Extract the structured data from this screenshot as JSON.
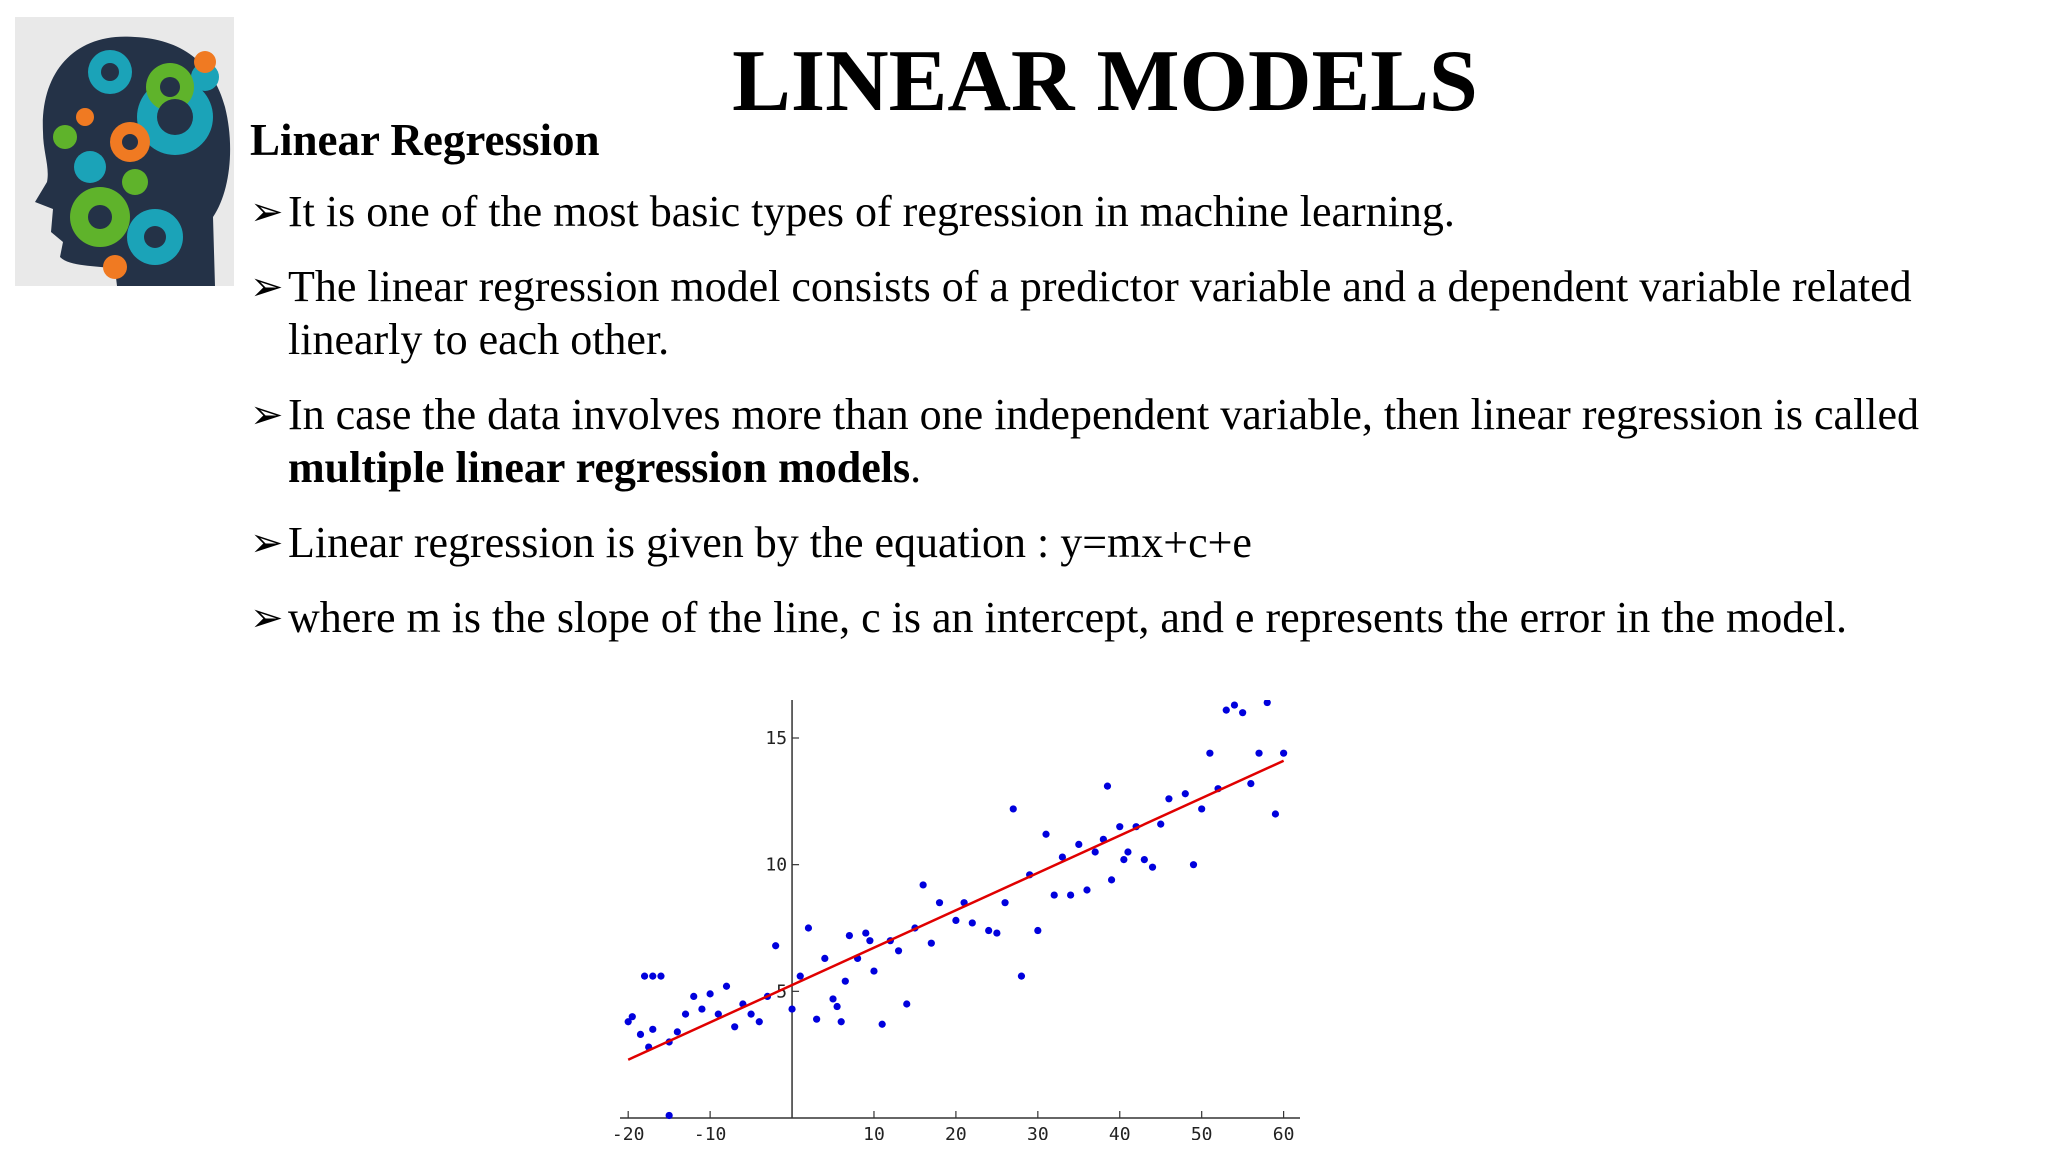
{
  "slide": {
    "title": "LINEAR MODELS",
    "subtitle": "Linear Regression",
    "bullets": [
      {
        "text": "It is one of the most basic types of regression in machine learning."
      },
      {
        "text": "The linear regression model consists of a predictor variable and a dependent variable related linearly to each other."
      },
      {
        "pre": "In case the data involves more than one independent variable, then linear regression is called ",
        "bold": "multiple linear regression models",
        "post": "."
      },
      {
        "text": "Linear regression  is given by the equation : y=mx+c+e"
      },
      {
        "text": "where m is the slope of the line, c is an intercept, and e represents the error in the model."
      }
    ],
    "bullet_marker": "➢",
    "logo_icon": "head-gears-icon"
  },
  "chart_data": {
    "type": "scatter",
    "title": "",
    "xlabel": "",
    "ylabel": "",
    "xlim": [
      -21,
      62
    ],
    "ylim": [
      0,
      16.5
    ],
    "x_ticks": [
      -20,
      -10,
      10,
      20,
      30,
      40,
      50,
      60
    ],
    "y_ticks": [
      5,
      10,
      15
    ],
    "x_tick_labels": [
      "-20",
      "-10",
      "10",
      "20",
      "30",
      "40",
      "50",
      "60"
    ],
    "y_tick_labels": [
      "5",
      "10",
      "15"
    ],
    "point_color": "#0000dd",
    "line_color": "#e00000",
    "grid": false,
    "series": [
      {
        "type": "scatter",
        "x": [
          -20,
          -19.5,
          -18.5,
          -18,
          -17.5,
          -17,
          -16,
          -15,
          -14,
          -13,
          -12,
          -11,
          -10,
          -9,
          -8,
          -7,
          -6,
          -5,
          -4,
          -3,
          -2,
          0,
          1,
          2,
          3,
          4,
          5,
          5.5,
          6,
          6.5,
          7,
          8,
          9,
          9.5,
          10,
          11,
          12,
          13,
          14,
          15,
          16,
          17,
          18,
          20,
          21,
          22,
          24,
          25,
          26,
          27,
          28,
          29,
          30,
          31,
          32,
          33,
          34,
          35,
          36,
          37,
          38,
          38.5,
          39,
          40,
          40.5,
          41,
          42,
          43,
          44,
          45,
          46,
          48,
          49,
          50,
          51,
          52,
          53,
          54,
          55,
          56,
          57,
          58,
          59,
          60,
          -17,
          -15
        ],
        "y": [
          3.8,
          4.0,
          3.3,
          5.6,
          2.8,
          3.5,
          5.6,
          3.0,
          3.4,
          4.1,
          4.8,
          4.3,
          4.9,
          4.1,
          5.2,
          3.6,
          4.5,
          4.1,
          3.8,
          4.8,
          6.8,
          4.3,
          5.6,
          7.5,
          3.9,
          6.3,
          4.7,
          4.4,
          3.8,
          5.4,
          7.2,
          6.3,
          7.3,
          7.0,
          5.8,
          3.7,
          7.0,
          6.6,
          4.5,
          7.5,
          9.2,
          6.9,
          8.5,
          7.8,
          8.5,
          7.7,
          7.4,
          7.3,
          8.5,
          12.2,
          5.6,
          9.6,
          7.4,
          11.2,
          8.8,
          10.3,
          8.8,
          10.8,
          9.0,
          10.5,
          11.0,
          13.1,
          9.4,
          11.5,
          10.2,
          10.5,
          11.5,
          10.2,
          9.9,
          11.6,
          12.6,
          12.8,
          10.0,
          12.2,
          14.4,
          13.0,
          16.1,
          16.3,
          16.0,
          13.2,
          14.4,
          16.4,
          12.0,
          14.4,
          5.6,
          0.1
        ]
      },
      {
        "type": "line",
        "x": [
          -20,
          60
        ],
        "y": [
          2.3,
          14.1
        ]
      }
    ]
  }
}
